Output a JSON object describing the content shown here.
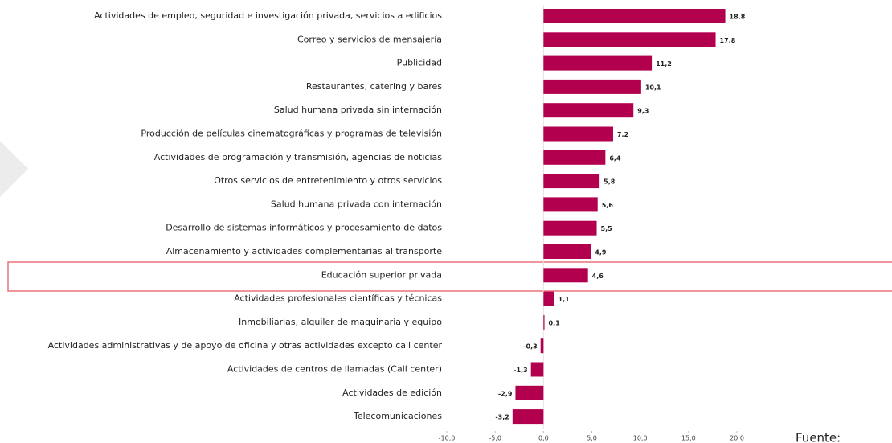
{
  "chart_data": {
    "type": "bar",
    "orientation": "horizontal",
    "color": "#b3004e",
    "categories": [
      "Actividades de empleo, seguridad e investigación privada, servicios a edificios",
      "Correo y servicios de mensajería",
      "Publicidad",
      "Restaurantes, catering y bares",
      "Salud humana privada sin internación",
      "Producción de películas cinematográficas y programas de televisión",
      "Actividades de programación y transmisión, agencias de noticias",
      "Otros servicios de entretenimiento y otros servicios",
      "Salud humana privada con internación",
      "Desarrollo de sistemas informáticos y procesamiento de datos",
      "Almacenamiento y actividades complementarias al transporte",
      "Educación superior privada",
      "Actividades profesionales científicas y técnicas",
      "Inmobiliarias, alquiler de maquinaria y equipo",
      "Actividades administrativas y de apoyo de oficina y otras actividades excepto call center",
      "Actividades de centros de llamadas (Call center)",
      "Actividades de edición",
      "Telecomunicaciones"
    ],
    "values": [
      18.8,
      17.8,
      11.2,
      10.1,
      9.3,
      7.2,
      6.4,
      5.8,
      5.6,
      5.5,
      4.9,
      4.6,
      1.1,
      0.1,
      -0.3,
      -1.3,
      -2.9,
      -3.2
    ],
    "value_labels": [
      "18,8",
      "17,8",
      "11,2",
      "10,1",
      "9,3",
      "7,2",
      "6,4",
      "5,8",
      "5,6",
      "5,5",
      "4,9",
      "4,6",
      "1,1",
      "0,1",
      "-0,3",
      "-1,3",
      "-2,9",
      "-3,2"
    ],
    "xlim": [
      -10,
      20
    ],
    "xticks": [
      {
        "value": -10,
        "label": "-10,0"
      },
      {
        "value": -5,
        "label": "-5,0"
      },
      {
        "value": 0,
        "label": "0,0"
      },
      {
        "value": 5,
        "label": "5,0"
      },
      {
        "value": 10,
        "label": "10,0"
      },
      {
        "value": 15,
        "label": "15,0"
      },
      {
        "value": 20,
        "label": "20,0"
      }
    ],
    "source": "Fuente:"
  }
}
